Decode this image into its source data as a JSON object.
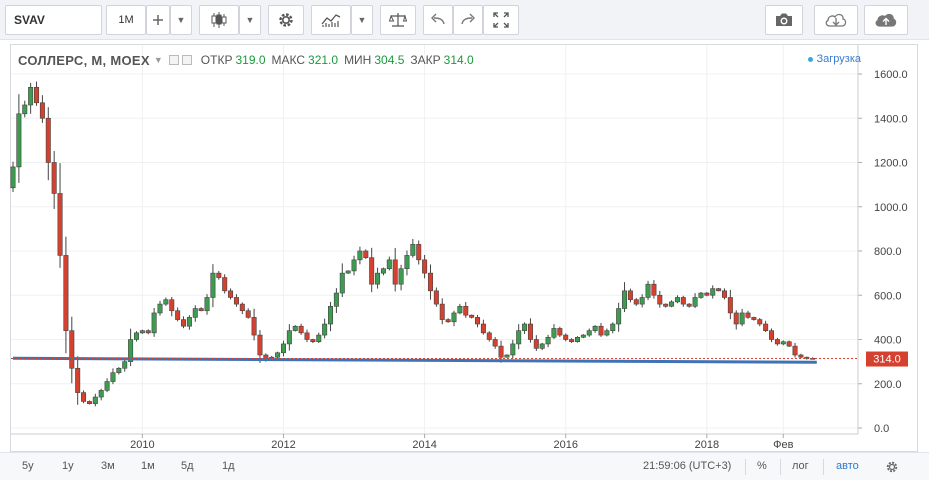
{
  "toolbar": {
    "symbol": "SVAV",
    "interval": "1М",
    "icons": [
      "plus-icon",
      "candles-icon",
      "gear-icon",
      "indicators-icon",
      "scale-icon",
      "undo-icon",
      "redo-icon",
      "fullscreen-icon",
      "camera-icon",
      "cloud-download-icon",
      "cloud-upload-icon"
    ]
  },
  "legend": {
    "symbol": "СОЛЛЕРС, М, MOEX",
    "open_label": "ОТКР",
    "open": "319.0",
    "high_label": "МАКС",
    "high": "321.0",
    "low_label": "МИН",
    "low": "304.5",
    "close_label": "ЗАКР",
    "close": "314.0"
  },
  "loading_text": "Загрузка",
  "last_price_label": "314.0",
  "bottom": {
    "ranges": [
      "5у",
      "1у",
      "3м",
      "1м",
      "5д",
      "1д"
    ],
    "time": "21:59:06 (UTC+3)",
    "percent": "%",
    "log": "лог",
    "auto": "авто"
  },
  "colors": {
    "up": "#3d9c4f",
    "down": "#d5412f",
    "trendline": "#3d74b8",
    "last_price_bg": "#d5412f",
    "price_line": "#d5412f"
  },
  "chart_data": {
    "type": "candlestick",
    "title": "СОЛЛЕРС, М, MOEX",
    "timeframe": "monthly",
    "x_ticks": [
      "2010",
      "2012",
      "2014",
      "2016",
      "2018",
      "Фев"
    ],
    "y_ticks": [
      "1600.0",
      "1400.0",
      "1200.0",
      "1000.0",
      "800.0",
      "600.0",
      "400.0",
      "200.0",
      "0.0"
    ],
    "ylim": [
      -10,
      1660
    ],
    "x_start": "2008-03",
    "grid": true,
    "last_price": 314.0,
    "trendline": {
      "from": [
        "2008-03",
        315
      ],
      "to": [
        "2019-06",
        297
      ]
    },
    "closes": [
      1180,
      1420,
      1460,
      1540,
      1470,
      1400,
      1200,
      1060,
      780,
      440,
      270,
      160,
      120,
      110,
      140,
      170,
      210,
      250,
      270,
      300,
      400,
      430,
      440,
      430,
      520,
      560,
      580,
      530,
      490,
      460,
      500,
      540,
      530,
      590,
      700,
      680,
      620,
      590,
      560,
      530,
      500,
      420,
      330,
      310,
      320,
      340,
      380,
      440,
      460,
      430,
      400,
      390,
      420,
      470,
      550,
      610,
      700,
      710,
      760,
      800,
      770,
      650,
      700,
      720,
      760,
      650,
      720,
      780,
      830,
      760,
      700,
      620,
      560,
      490,
      480,
      520,
      550,
      510,
      500,
      470,
      430,
      400,
      370,
      320,
      330,
      380,
      440,
      470,
      400,
      360,
      380,
      410,
      450,
      420,
      400,
      390,
      410,
      420,
      440,
      460,
      420,
      440,
      470,
      540,
      620,
      580,
      560,
      590,
      650,
      600,
      560,
      550,
      570,
      590,
      560,
      550,
      590,
      610,
      600,
      630,
      620,
      590,
      520,
      470,
      520,
      500,
      490,
      470,
      440,
      400,
      380,
      390,
      370,
      330,
      320,
      315,
      314
    ]
  }
}
